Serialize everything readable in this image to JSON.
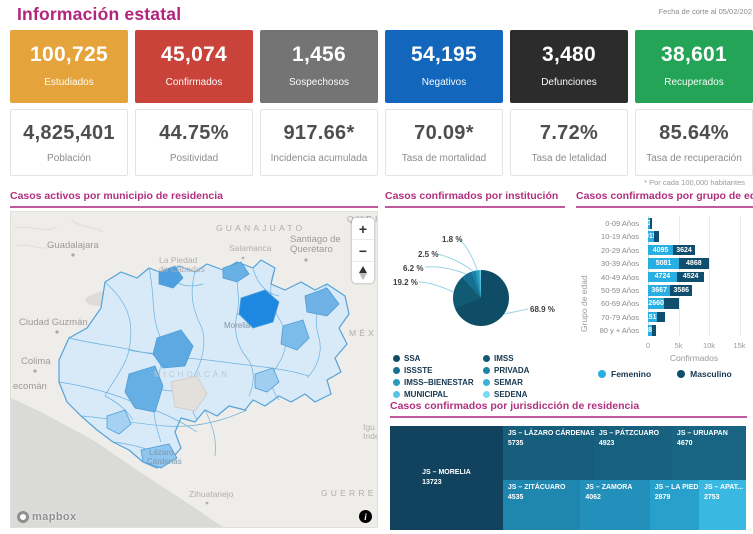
{
  "header": {
    "title": "Información estatal",
    "date_note": "Fecha de corte al 05/02/202"
  },
  "summary_cards": [
    {
      "value": "100,725",
      "label": "Estudiados",
      "color": "#E5A33C"
    },
    {
      "value": "45,074",
      "label": "Confirmados",
      "color": "#C9433A"
    },
    {
      "value": "1,456",
      "label": "Sospechosos",
      "color": "#747474"
    },
    {
      "value": "54,195",
      "label": "Negativos",
      "color": "#1266BB"
    },
    {
      "value": "3,480",
      "label": "Defunciones",
      "color": "#2D2C2C"
    },
    {
      "value": "38,601",
      "label": "Recuperados",
      "color": "#23A457"
    }
  ],
  "rate_cards": [
    {
      "value": "4,825,401",
      "label": "Población"
    },
    {
      "value": "44.75%",
      "label": "Positividad"
    },
    {
      "value": "917.66*",
      "label": "Incidencia acumulada"
    },
    {
      "value": "70.09*",
      "label": "Tasa de mortalidad"
    },
    {
      "value": "7.72%",
      "label": "Tasa de letalidad"
    },
    {
      "value": "85.64%",
      "label": "Tasa de recuperación"
    }
  ],
  "footnote": "* Por cada 100,000 habitantes",
  "map": {
    "title": "Casos activos por municipio de residencia",
    "controls": {
      "zoom_in": "+",
      "zoom_out": "−"
    },
    "attribution": "mapbox",
    "info_icon": "i",
    "labels": {
      "guanajuato": "GUANAJUATO",
      "queretaro_state": "QUERE",
      "guadalajara": "Guadalajara",
      "santiago1": "Santiago de",
      "santiago2": "Querétaro",
      "salamanca": "Salamanca",
      "lapiedad1": "La Piedad",
      "lapiedad2": "de Cabadas",
      "ciudad_guzman": "Ciudad Guzmán",
      "colima": "Colima",
      "tecoman": "ecomán",
      "michoacan": "MICHOACÁN",
      "morelia": "Morelia",
      "mexico_state": "MÉXI",
      "lazaro1": "Lázaro",
      "lazaro2": "Cárdenas",
      "zihuatanejo": "Zihuatanejo",
      "guerrero": "GUERRERO",
      "iguala1": "Igu",
      "iguala2": "Inde"
    }
  },
  "chart_data": [
    {
      "id": "institucion",
      "type": "pie",
      "title": "Casos confirmados por institución",
      "legend_position": "bottom-left",
      "slices": [
        {
          "name": "SSA",
          "pct": 68.9,
          "labeled": true,
          "color": "#0F4C66"
        },
        {
          "name": "IMSS",
          "pct": 19.2,
          "labeled": true,
          "color": "#125A74"
        },
        {
          "name": "ISSSTE",
          "pct": 6.2,
          "labeled": true,
          "color": "#17708F"
        },
        {
          "name": "PRIVADA",
          "pct": 2.5,
          "labeled": true,
          "color": "#1E83A6"
        },
        {
          "name": "IMSS–BIENESTAR",
          "pct": 1.8,
          "labeled": true,
          "color": "#2A9CC0"
        },
        {
          "name": "SEMAR",
          "pct": 0.7,
          "labeled": false,
          "estimated": true,
          "color": "#3DB3D6"
        },
        {
          "name": "MUNICIPAL",
          "pct": 0.5,
          "labeled": false,
          "estimated": true,
          "color": "#55C4E6"
        },
        {
          "name": "SEDENA",
          "pct": 0.2,
          "labeled": false,
          "estimated": true,
          "color": "#7ADAF2"
        }
      ],
      "legend_columns": [
        [
          "SSA",
          "ISSSTE",
          "IMSS–BIENESTAR",
          "MUNICIPAL"
        ],
        [
          "IMSS",
          "PRIVADA",
          "SEMAR",
          "SEDENA"
        ]
      ]
    },
    {
      "id": "grupo_edad",
      "type": "stacked-horizontal-bar",
      "title": "Casos confirmados por grupo de edad",
      "xlabel": "Confirmados",
      "ylabel": "Grupo de edad",
      "xlim": [
        0,
        15000
      ],
      "xticks": [
        "0",
        "5k",
        "10k",
        "15k"
      ],
      "categories": [
        "0-09 Años",
        "10-19 Años",
        "20-29 Años",
        "30-39 Años",
        "40-49 Años",
        "50-59 Años",
        "60-69 Años",
        "70-79 Años",
        "80 y + Años"
      ],
      "series": [
        {
          "name": "Femenino",
          "color": "#27AEE3",
          "values": [
            307,
            915,
            4095,
            5081,
            4724,
            3667,
            2660,
            1517,
            688
          ],
          "labels": [
            "307",
            "915",
            "4095",
            "5081",
            "4724",
            "3667",
            "2660",
            "1517",
            "688"
          ]
        },
        {
          "name": "Masculino",
          "color": "#104E6D",
          "values": [
            286,
            913,
            3624,
            4868,
            4524,
            3586,
            2456,
            1311,
            622
          ],
          "labels": [
            "",
            "",
            "3624",
            "4868",
            "4524",
            "3586",
            "",
            "",
            ""
          ]
        }
      ]
    },
    {
      "id": "jurisdiccion",
      "type": "treemap",
      "title": "Casos confirmados por jurisdicción de residencia",
      "items": [
        {
          "name": "JS – MORELIA",
          "value": 13723,
          "value_text": "13723",
          "color": "#11425E"
        },
        {
          "name": "JS – LÁZARO CÁRDENAS",
          "value": 5735,
          "value_text": "5735",
          "color": "#175E7C"
        },
        {
          "name": "JS – PÁTZCUARO",
          "value": 4923,
          "value_text": "4923",
          "color": "#17617F"
        },
        {
          "name": "JS – URUAPAN",
          "value": 4670,
          "value_text": "4670",
          "color": "#186482"
        },
        {
          "name": "JS – ZITÁCUARO",
          "value": 4535,
          "value_text": "4535",
          "color": "#1F86AF"
        },
        {
          "name": "JS – ZAMORA",
          "value": 4062,
          "value_text": "4062",
          "color": "#2290BB"
        },
        {
          "name": "JS – LA PIEDAD",
          "value": 2879,
          "value_text": "2879",
          "color": "#27A0CB"
        },
        {
          "name": "JS – APAT...",
          "value": 2753,
          "value_text": "2753",
          "color": "#39B9E2"
        }
      ]
    }
  ]
}
